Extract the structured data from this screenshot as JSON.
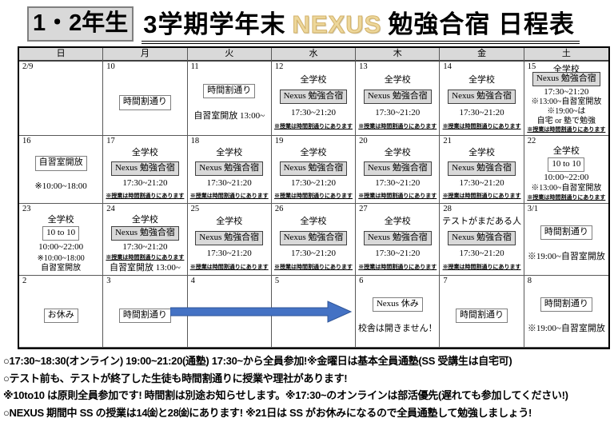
{
  "title": {
    "grade_box": "1・2年生",
    "part1": "3学期学年末",
    "nexus": "NEXUS",
    "part2": "勉強合宿 日程表"
  },
  "colors": {
    "nexus_gold": "#EDD79B",
    "nexus_gold_dark": "#D3B269",
    "box_gray": "#D9D9D9",
    "arrow_blue": "#4472C4"
  },
  "weekdays": [
    "日",
    "月",
    "火",
    "水",
    "木",
    "金",
    "土"
  ],
  "weeks": [
    {
      "cells": [
        {
          "date": "2/9",
          "items": []
        },
        {
          "date": "10",
          "items": [
            {
              "t": "box",
              "text": "時間割通り"
            }
          ]
        },
        {
          "date": "11",
          "items": [
            {
              "t": "box",
              "text": "時間割通り"
            },
            {
              "t": "text",
              "text": "自習室開放 13:00~"
            }
          ]
        },
        {
          "date": "12",
          "items": [
            {
              "t": "text",
              "text": "全学校"
            },
            {
              "t": "boxgray",
              "text": "Nexus 勉強合宿"
            },
            {
              "t": "text",
              "text": "17:30~21:20"
            },
            {
              "t": "note",
              "text": "※授業は時間割通りにあります"
            }
          ]
        },
        {
          "date": "13",
          "items": [
            {
              "t": "text",
              "text": "全学校"
            },
            {
              "t": "boxgray",
              "text": "Nexus 勉強合宿"
            },
            {
              "t": "text",
              "text": "17:30~21:20"
            },
            {
              "t": "note",
              "text": "※授業は時間割通りにあります"
            }
          ]
        },
        {
          "date": "14",
          "items": [
            {
              "t": "text",
              "text": "全学校"
            },
            {
              "t": "boxgray",
              "text": "Nexus 勉強合宿"
            },
            {
              "t": "text",
              "text": "17:30~21:20"
            },
            {
              "t": "note",
              "text": "※授業は時間割通りにあります"
            }
          ]
        },
        {
          "date": "15",
          "side": "全学校",
          "items": [
            {
              "t": "boxgray",
              "text": "Nexus 勉強合宿"
            },
            {
              "t": "text",
              "text": "17:30~21:20"
            },
            {
              "t": "sub",
              "text": "※13:00~自習室開放"
            },
            {
              "t": "sub",
              "text": "※19:00~は"
            },
            {
              "t": "sub",
              "text": "自宅 or 塾で勉強"
            },
            {
              "t": "note",
              "text": "※授業は時間割通りにあります"
            }
          ]
        }
      ]
    },
    {
      "cells": [
        {
          "date": "16",
          "items": [
            {
              "t": "box",
              "text": "自習室開放"
            },
            {
              "t": "text",
              "text": "※10:00~18:00"
            }
          ]
        },
        {
          "date": "17",
          "items": [
            {
              "t": "text",
              "text": "全学校"
            },
            {
              "t": "boxgray",
              "text": "Nexus 勉強合宿"
            },
            {
              "t": "text",
              "text": "17:30~21:20"
            },
            {
              "t": "note",
              "text": "※授業は時間割通りにあります"
            }
          ]
        },
        {
          "date": "18",
          "items": [
            {
              "t": "text",
              "text": "全学校"
            },
            {
              "t": "boxgray",
              "text": "Nexus 勉強合宿"
            },
            {
              "t": "text",
              "text": "17:30~21:20"
            },
            {
              "t": "note",
              "text": "※授業は時間割通りにあります"
            }
          ]
        },
        {
          "date": "19",
          "items": [
            {
              "t": "text",
              "text": "全学校"
            },
            {
              "t": "boxgray",
              "text": "Nexus 勉強合宿"
            },
            {
              "t": "text",
              "text": "17:30~21:20"
            },
            {
              "t": "note",
              "text": "※授業は時間割通りにあります"
            }
          ]
        },
        {
          "date": "20",
          "items": [
            {
              "t": "text",
              "text": "全学校"
            },
            {
              "t": "boxgray",
              "text": "Nexus 勉強合宿"
            },
            {
              "t": "text",
              "text": "17:30~21:20"
            },
            {
              "t": "note",
              "text": "※授業は時間割通りにあります"
            }
          ]
        },
        {
          "date": "21",
          "items": [
            {
              "t": "text",
              "text": "全学校"
            },
            {
              "t": "boxgray",
              "text": "Nexus 勉強合宿"
            },
            {
              "t": "text",
              "text": "17:30~21:20"
            },
            {
              "t": "note",
              "text": "※授業は時間割通りにあります"
            }
          ]
        },
        {
          "date": "22",
          "items": [
            {
              "t": "text",
              "text": "全学校"
            },
            {
              "t": "box",
              "text": "10 to 10"
            },
            {
              "t": "text",
              "text": "10:00~22:00"
            },
            {
              "t": "sub",
              "text": "※13:00~自習室開放"
            },
            {
              "t": "note",
              "text": "※授業は時間割通りにあります"
            }
          ]
        }
      ]
    },
    {
      "cells": [
        {
          "date": "23",
          "items": [
            {
              "t": "text",
              "text": "全学校"
            },
            {
              "t": "box",
              "text": "10 to 10"
            },
            {
              "t": "text",
              "text": "10:00~22:00"
            },
            {
              "t": "sub",
              "text": "※10:00~18:00"
            },
            {
              "t": "sub",
              "text": "自習室開放"
            }
          ]
        },
        {
          "date": "24",
          "items": [
            {
              "t": "text",
              "text": "全学校"
            },
            {
              "t": "boxgray",
              "text": "Nexus 勉強合宿"
            },
            {
              "t": "text",
              "text": "17:30~21:20"
            },
            {
              "t": "note",
              "text": "※授業は時間割通りにあります"
            },
            {
              "t": "text",
              "text": "自習室開放 13:00~"
            }
          ]
        },
        {
          "date": "25",
          "items": [
            {
              "t": "text",
              "text": "全学校"
            },
            {
              "t": "boxgray",
              "text": "Nexus 勉強合宿"
            },
            {
              "t": "text",
              "text": "17:30~21:20"
            },
            {
              "t": "note",
              "text": "※授業は時間割通りにあります"
            }
          ]
        },
        {
          "date": "26",
          "items": [
            {
              "t": "text",
              "text": "全学校"
            },
            {
              "t": "boxgray",
              "text": "Nexus 勉強合宿"
            },
            {
              "t": "text",
              "text": "17:30~21:20"
            },
            {
              "t": "note",
              "text": "※授業は時間割通りにあります"
            }
          ]
        },
        {
          "date": "27",
          "items": [
            {
              "t": "text",
              "text": "全学校"
            },
            {
              "t": "boxgray",
              "text": "Nexus 勉強合宿"
            },
            {
              "t": "text",
              "text": "17:30~21:20"
            },
            {
              "t": "note",
              "text": "※授業は時間割通りにあります"
            }
          ]
        },
        {
          "date": "28",
          "items": [
            {
              "t": "text",
              "text": "テストがまだある人"
            },
            {
              "t": "boxgray",
              "text": "Nexus 勉強合宿"
            },
            {
              "t": "text",
              "text": "17:30~21:20"
            },
            {
              "t": "note",
              "text": "※授業は時間割通りにあります"
            }
          ]
        },
        {
          "date": "3/1",
          "items": [
            {
              "t": "box",
              "text": "時間割通り"
            },
            {
              "t": "text",
              "text": "※19:00~自習室開放"
            }
          ]
        }
      ]
    },
    {
      "cells": [
        {
          "date": "2",
          "items": [
            {
              "t": "box",
              "text": "お休み"
            }
          ]
        },
        {
          "date": "3",
          "items": [
            {
              "t": "box",
              "text": "時間割通り"
            }
          ]
        },
        {
          "date": "4",
          "items": []
        },
        {
          "date": "5",
          "items": []
        },
        {
          "date": "6",
          "items": [
            {
              "t": "box",
              "text": "Nexus 休み"
            },
            {
              "t": "text",
              "text": "校舎は開きません！"
            }
          ]
        },
        {
          "date": "7",
          "items": [
            {
              "t": "box",
              "text": "時間割通り"
            }
          ]
        },
        {
          "date": "8",
          "items": [
            {
              "t": "box",
              "text": "時間割通り"
            },
            {
              "t": "text",
              "text": "※19:00~自習室開放"
            }
          ]
        }
      ]
    }
  ],
  "notes": [
    "○17:30~18:30(オンライン) 19:00~21:20(通塾) 17:30~から全員参加!※金曜日は基本全員通塾(SS 受講生は自宅可)",
    "○テスト前も、テストが終了した生徒も時間割通りに授業や理社があります!",
    "※10to10 は原則全員参加です! 時間割は別途お知らせします。※17:30~のオンラインは部活優先(遅れても参加してください!)",
    "○NEXUS 期間中 SS の授業は14㈮と28㈮にあります! ※21日は SS がお休みになるので全員通塾して勉強しましょう!"
  ]
}
